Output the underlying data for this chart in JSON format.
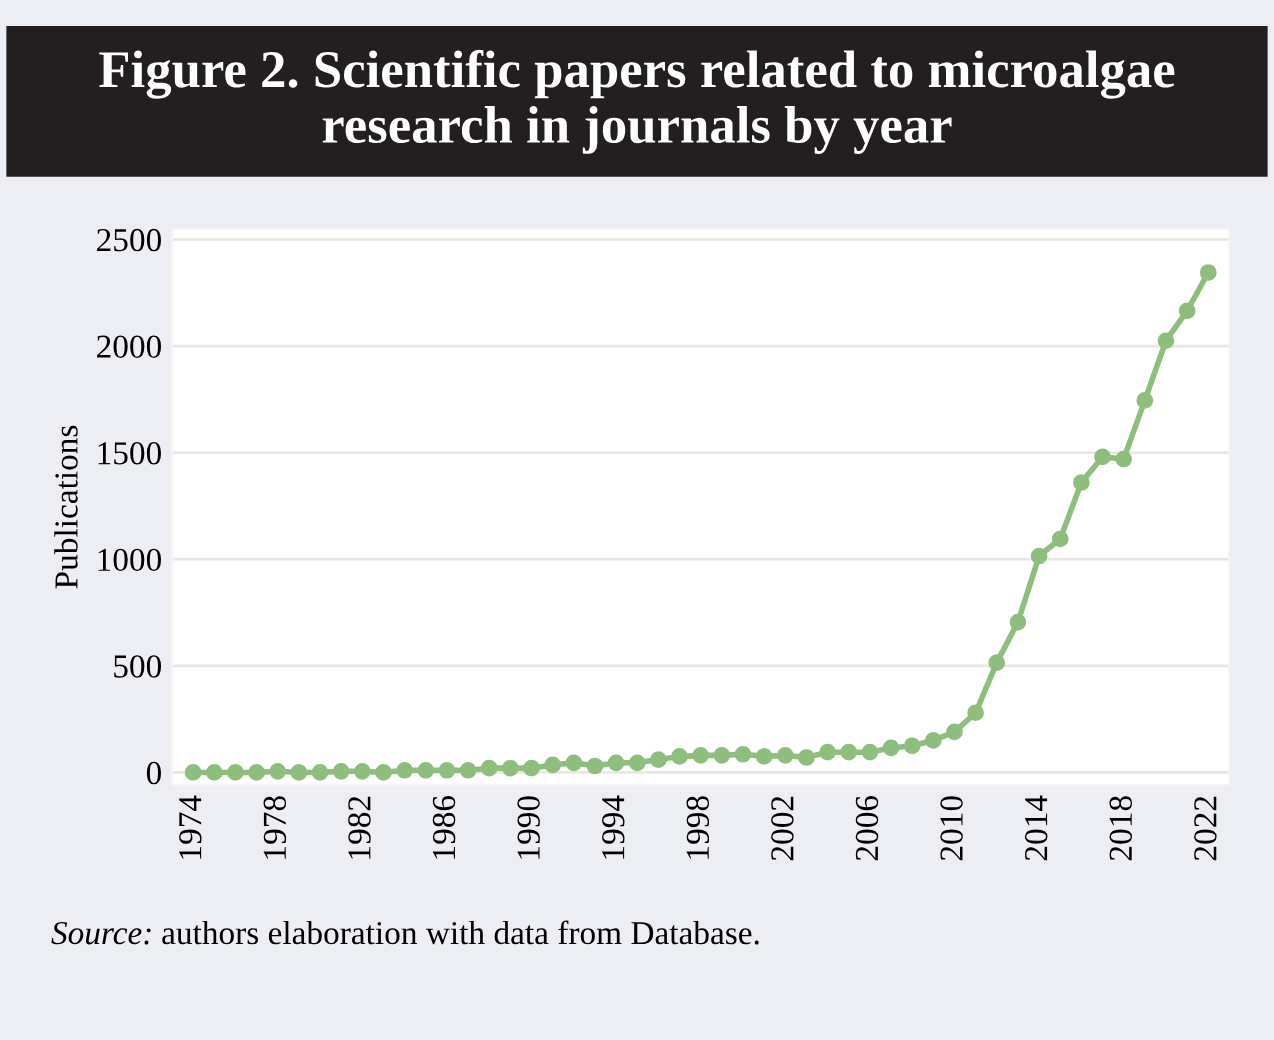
{
  "chart_data": {
    "type": "line",
    "title": "Figure 2. Scientific papers related to microalgae research in journals by year",
    "ylabel": "Publications",
    "x": [
      1974,
      1975,
      1976,
      1977,
      1978,
      1979,
      1980,
      1981,
      1982,
      1983,
      1984,
      1985,
      1986,
      1987,
      1988,
      1989,
      1990,
      1991,
      1992,
      1993,
      1994,
      1995,
      1996,
      1997,
      1998,
      1999,
      2000,
      2001,
      2002,
      2003,
      2004,
      2005,
      2006,
      2007,
      2008,
      2009,
      2010,
      2011,
      2012,
      2013,
      2014,
      2015,
      2016,
      2017,
      2018,
      2019,
      2020,
      2021,
      2022
    ],
    "series": [
      {
        "color": "#8dbe7c",
        "values": [
          0,
          0,
          0,
          0,
          5,
          0,
          0,
          5,
          5,
          0,
          10,
          10,
          10,
          10,
          20,
          20,
          20,
          35,
          45,
          30,
          45,
          45,
          60,
          75,
          80,
          80,
          85,
          75,
          80,
          70,
          95,
          95,
          95,
          115,
          125,
          150,
          190,
          280,
          515,
          705,
          1015,
          1095,
          1360,
          1480,
          1470,
          1745,
          2025,
          2165,
          2345
        ]
      }
    ],
    "xlim": [
      1973,
      2023
    ],
    "xticks": [
      1974,
      1978,
      1982,
      1986,
      1990,
      1994,
      1998,
      2002,
      2006,
      2010,
      2014,
      2018,
      2022
    ],
    "ylim": [
      -60,
      2550
    ],
    "yticks": [
      0,
      500,
      1000,
      1500,
      2000,
      2500
    ],
    "grid": "y",
    "marker": "circle",
    "line_style": "solid",
    "legend": false,
    "annotations": [
      "Source: authors elaboration with data from Database."
    ]
  }
}
